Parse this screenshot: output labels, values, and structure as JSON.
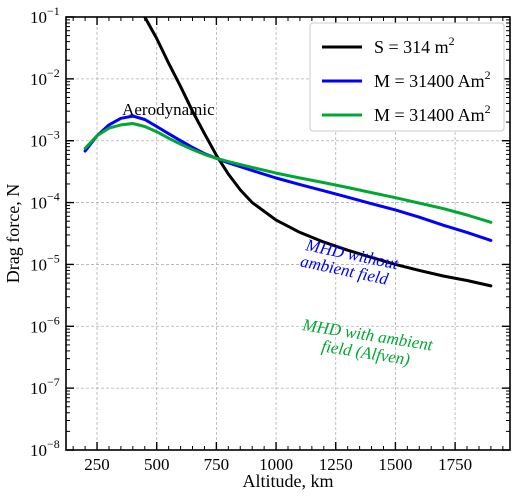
{
  "chart_data": {
    "type": "line",
    "title": "",
    "xlabel": "Altitude, km",
    "ylabel": "Drag force, N",
    "xlim": [
      120,
      1980
    ],
    "ylim": [
      1e-08,
      0.1
    ],
    "yscale": "log",
    "grid": true,
    "legend_placement": "top-right",
    "xticks": [
      {
        "value": 250,
        "label": "250"
      },
      {
        "value": 500,
        "label": "500"
      },
      {
        "value": 750,
        "label": "750"
      },
      {
        "value": 1000,
        "label": "1000"
      },
      {
        "value": 1250,
        "label": "1250"
      },
      {
        "value": 1500,
        "label": "1500"
      },
      {
        "value": 1750,
        "label": "1750"
      }
    ],
    "yticks": [
      {
        "value": 1e-08,
        "base": "10",
        "exp": "−8"
      },
      {
        "value": 1e-07,
        "base": "10",
        "exp": "−7"
      },
      {
        "value": 1e-06,
        "base": "10",
        "exp": "−6"
      },
      {
        "value": 1e-05,
        "base": "10",
        "exp": "−5"
      },
      {
        "value": 0.0001,
        "base": "10",
        "exp": "−4"
      },
      {
        "value": 0.001,
        "base": "10",
        "exp": "−3"
      },
      {
        "value": 0.01,
        "base": "10",
        "exp": "−2"
      },
      {
        "value": 0.1,
        "base": "10",
        "exp": "−1"
      }
    ],
    "series": [
      {
        "name": "S = 314 m",
        "name_sup": "2",
        "color": "#000000",
        "x": [
          450,
          500,
          550,
          600,
          650,
          700,
          750,
          800,
          850,
          900,
          1000,
          1100,
          1200,
          1300,
          1400,
          1500,
          1600,
          1700,
          1800,
          1900
        ],
        "y": [
          0.1,
          0.045,
          0.018,
          0.0075,
          0.003,
          0.0013,
          0.00058,
          0.00029,
          0.00016,
          0.0001,
          5.2e-05,
          3.3e-05,
          2.3e-05,
          1.7e-05,
          1.3e-05,
          1e-05,
          8e-06,
          6.5e-06,
          5.5e-06,
          4.5e-06
        ]
      },
      {
        "name": "M = 31400 Am",
        "name_sup": "2",
        "color": "#0000ff",
        "x": [
          200,
          250,
          300,
          350,
          400,
          450,
          500,
          550,
          600,
          650,
          700,
          750,
          800,
          900,
          1000,
          1100,
          1200,
          1300,
          1400,
          1500,
          1600,
          1700,
          1800,
          1900
        ],
        "y": [
          0.00068,
          0.0012,
          0.0018,
          0.0023,
          0.0025,
          0.0022,
          0.0017,
          0.0013,
          0.001,
          0.00078,
          0.00062,
          0.00052,
          0.00044,
          0.00033,
          0.00025,
          0.000195,
          0.000155,
          0.000122,
          9.6e-05,
          7.6e-05,
          5.8e-05,
          4.3e-05,
          3.3e-05,
          2.45e-05
        ]
      },
      {
        "name": "M = 31400 Am",
        "name_sup": "2",
        "color": "#00a833",
        "x": [
          200,
          250,
          300,
          350,
          400,
          450,
          500,
          550,
          600,
          650,
          700,
          750,
          800,
          900,
          1000,
          1100,
          1200,
          1300,
          1400,
          1500,
          1600,
          1700,
          1800,
          1900
        ],
        "y": [
          0.00075,
          0.0012,
          0.0016,
          0.0018,
          0.0019,
          0.0017,
          0.0014,
          0.0011,
          0.00088,
          0.00072,
          0.0006,
          0.00052,
          0.00046,
          0.00037,
          0.0003,
          0.00025,
          0.00021,
          0.000175,
          0.000145,
          0.00012,
          9.8e-05,
          8e-05,
          6.3e-05,
          4.8e-05
        ]
      }
    ],
    "annotations": [
      {
        "text": "Aerodynamic",
        "color": "#000000"
      },
      {
        "lines": [
          "MHD without",
          "ambient field"
        ],
        "color": "#0000ff"
      },
      {
        "lines": [
          "MHD with ambient",
          "field (Alfven)"
        ],
        "color": "#00a833"
      }
    ]
  }
}
